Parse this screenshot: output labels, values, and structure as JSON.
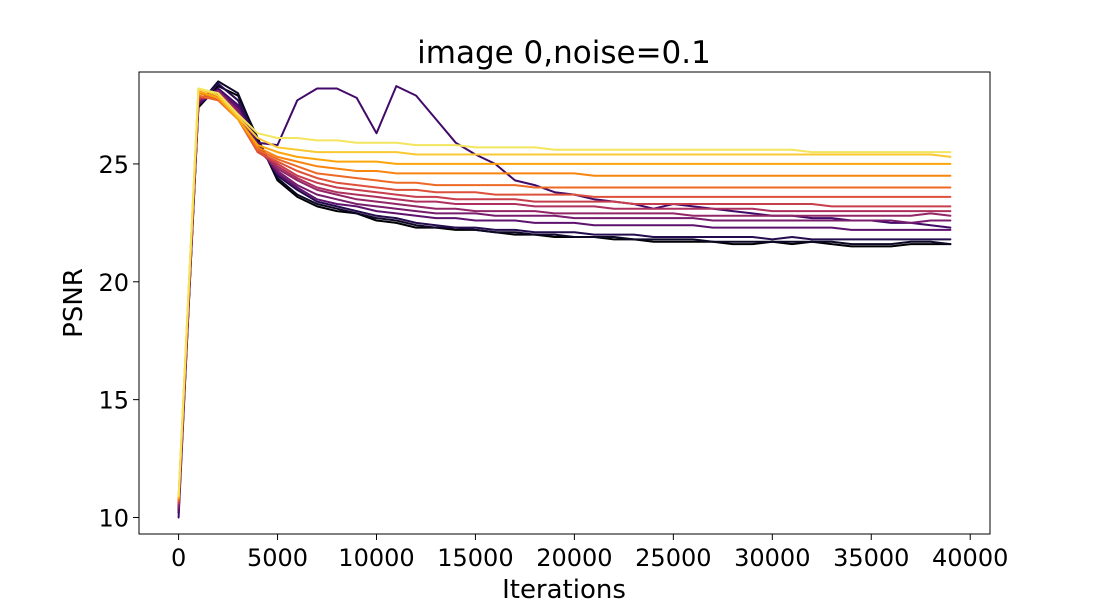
{
  "chart_data": {
    "type": "line",
    "title": "image 0,noise=0.1",
    "xlabel": "Iterations",
    "ylabel": "PSNR",
    "xlim": [
      -2000,
      41000
    ],
    "ylim": [
      9.3,
      28.9
    ],
    "xticks": [
      0,
      5000,
      10000,
      15000,
      20000,
      25000,
      30000,
      35000,
      40000
    ],
    "xtick_labels": [
      "0",
      "5000",
      "10000",
      "15000",
      "20000",
      "25000",
      "30000",
      "35000",
      "40000"
    ],
    "yticks": [
      10,
      15,
      20,
      25
    ],
    "ytick_labels": [
      "10",
      "15",
      "20",
      "25"
    ],
    "grid": false,
    "legend": "none",
    "x": [
      0,
      1000,
      2000,
      3000,
      4000,
      5000,
      6000,
      7000,
      8000,
      9000,
      10000,
      11000,
      12000,
      13000,
      14000,
      15000,
      16000,
      17000,
      18000,
      19000,
      20000,
      21000,
      22000,
      23000,
      24000,
      25000,
      26000,
      27000,
      28000,
      29000,
      30000,
      31000,
      32000,
      33000,
      34000,
      35000,
      36000,
      37000,
      38000,
      39000
    ],
    "series": [
      {
        "color": "#000004",
        "values": [
          10.2,
          27.4,
          28.3,
          27.9,
          26.1,
          24.3,
          23.6,
          23.2,
          23.0,
          22.9,
          22.6,
          22.5,
          22.3,
          22.3,
          22.2,
          22.2,
          22.1,
          22.0,
          22.0,
          21.9,
          21.9,
          21.9,
          21.8,
          21.8,
          21.7,
          21.7,
          21.7,
          21.7,
          21.6,
          21.6,
          21.7,
          21.6,
          21.7,
          21.6,
          21.5,
          21.5,
          21.5,
          21.6,
          21.6,
          21.6
        ]
      },
      {
        "color": "#0c0826",
        "values": [
          10.3,
          27.5,
          28.5,
          28.0,
          26.0,
          24.4,
          23.7,
          23.3,
          23.1,
          22.9,
          22.7,
          22.6,
          22.4,
          22.3,
          22.3,
          22.2,
          22.1,
          22.1,
          22.0,
          22.0,
          21.9,
          21.9,
          21.9,
          21.8,
          21.8,
          21.8,
          21.8,
          21.7,
          21.7,
          21.7,
          21.7,
          21.7,
          21.7,
          21.7,
          21.6,
          21.6,
          21.6,
          21.7,
          21.7,
          21.6
        ]
      },
      {
        "color": "#240c4f",
        "values": [
          10.4,
          27.6,
          28.4,
          27.7,
          25.9,
          24.5,
          23.9,
          23.4,
          23.2,
          23.0,
          22.8,
          22.7,
          22.5,
          22.4,
          22.3,
          22.3,
          22.2,
          22.2,
          22.1,
          22.1,
          22.1,
          22.0,
          22.0,
          22.0,
          21.9,
          21.9,
          21.9,
          21.9,
          21.9,
          21.9,
          21.8,
          21.9,
          21.8,
          21.8,
          21.8,
          21.8,
          21.8,
          21.8,
          21.8,
          21.8
        ]
      },
      {
        "color": "#420a68",
        "values": [
          10.0,
          27.5,
          28.2,
          27.5,
          25.9,
          25.8,
          27.7,
          28.2,
          28.2,
          27.8,
          26.3,
          28.3,
          27.9,
          26.9,
          25.9,
          25.4,
          25.0,
          24.3,
          24.1,
          23.8,
          23.7,
          23.5,
          23.4,
          23.3,
          23.1,
          23.3,
          23.2,
          23.1,
          23.0,
          22.9,
          22.8,
          22.8,
          22.7,
          22.7,
          22.6,
          22.6,
          22.5,
          22.5,
          22.4,
          22.3
        ]
      },
      {
        "color": "#5d126e",
        "values": [
          10.3,
          27.6,
          28.1,
          27.4,
          25.8,
          24.6,
          24.0,
          23.5,
          23.3,
          23.2,
          23.0,
          22.9,
          22.8,
          22.7,
          22.7,
          22.6,
          22.6,
          22.6,
          22.5,
          22.5,
          22.5,
          22.4,
          22.4,
          22.4,
          22.4,
          22.4,
          22.4,
          22.3,
          22.3,
          22.3,
          22.3,
          22.3,
          22.3,
          22.3,
          22.2,
          22.2,
          22.2,
          22.2,
          22.2,
          22.2
        ]
      },
      {
        "color": "#781c6d",
        "values": [
          10.4,
          27.7,
          28.0,
          27.3,
          25.7,
          24.7,
          24.1,
          23.7,
          23.5,
          23.3,
          23.2,
          23.1,
          23.0,
          22.9,
          22.9,
          22.9,
          22.8,
          22.8,
          22.8,
          22.8,
          22.7,
          22.7,
          22.7,
          22.7,
          22.7,
          22.7,
          22.7,
          22.6,
          22.6,
          22.6,
          22.6,
          22.6,
          22.6,
          22.6,
          22.6,
          22.6,
          22.6,
          22.5,
          22.6,
          22.6
        ]
      },
      {
        "color": "#932667",
        "values": [
          10.5,
          27.7,
          28.1,
          27.2,
          25.6,
          24.8,
          24.3,
          23.9,
          23.7,
          23.5,
          23.4,
          23.3,
          23.2,
          23.1,
          23.1,
          23.0,
          23.0,
          23.0,
          23.0,
          22.9,
          22.9,
          22.9,
          22.9,
          22.9,
          22.9,
          22.9,
          22.8,
          22.8,
          22.8,
          22.8,
          22.8,
          22.8,
          22.8,
          22.8,
          22.8,
          22.8,
          22.8,
          22.8,
          22.9,
          22.8
        ]
      },
      {
        "color": "#ad305f",
        "values": [
          10.6,
          27.8,
          27.9,
          27.1,
          25.6,
          24.9,
          24.4,
          24.0,
          23.8,
          23.7,
          23.6,
          23.5,
          23.4,
          23.4,
          23.3,
          23.3,
          23.3,
          23.3,
          23.2,
          23.2,
          23.2,
          23.2,
          23.1,
          23.1,
          23.1,
          23.1,
          23.1,
          23.1,
          23.1,
          23.1,
          23.0,
          23.0,
          23.0,
          23.0,
          23.0,
          23.0,
          23.0,
          23.0,
          23.0,
          23.0
        ]
      },
      {
        "color": "#c73e4c",
        "values": [
          10.6,
          27.8,
          27.8,
          27.0,
          25.5,
          25.0,
          24.5,
          24.2,
          24.0,
          23.9,
          23.8,
          23.7,
          23.6,
          23.6,
          23.5,
          23.5,
          23.5,
          23.5,
          23.4,
          23.4,
          23.4,
          23.4,
          23.4,
          23.3,
          23.3,
          23.3,
          23.3,
          23.3,
          23.3,
          23.3,
          23.3,
          23.3,
          23.3,
          23.2,
          23.2,
          23.2,
          23.2,
          23.2,
          23.2,
          23.2
        ]
      },
      {
        "color": "#dd513a",
        "values": [
          10.7,
          27.9,
          27.7,
          26.9,
          25.5,
          25.1,
          24.7,
          24.4,
          24.2,
          24.1,
          24.0,
          23.9,
          23.9,
          23.8,
          23.8,
          23.8,
          23.7,
          23.7,
          23.7,
          23.7,
          23.7,
          23.6,
          23.6,
          23.6,
          23.6,
          23.6,
          23.6,
          23.6,
          23.6,
          23.6,
          23.6,
          23.6,
          23.6,
          23.6,
          23.6,
          23.6,
          23.6,
          23.6,
          23.6,
          23.6
        ]
      },
      {
        "color": "#ed6925",
        "values": [
          10.7,
          27.9,
          27.7,
          26.9,
          25.6,
          25.2,
          24.9,
          24.6,
          24.5,
          24.4,
          24.3,
          24.2,
          24.2,
          24.1,
          24.1,
          24.1,
          24.1,
          24.1,
          24.0,
          24.0,
          24.0,
          24.0,
          24.0,
          24.0,
          24.0,
          24.0,
          24.0,
          24.0,
          24.0,
          24.0,
          24.0,
          24.0,
          24.0,
          24.0,
          24.0,
          24.0,
          24.0,
          24.0,
          24.0,
          24.0
        ]
      },
      {
        "color": "#f8850f",
        "values": [
          10.8,
          28.0,
          27.8,
          26.9,
          25.7,
          25.3,
          25.1,
          24.9,
          24.8,
          24.7,
          24.7,
          24.6,
          24.6,
          24.6,
          24.6,
          24.6,
          24.6,
          24.6,
          24.6,
          24.6,
          24.6,
          24.5,
          24.5,
          24.5,
          24.5,
          24.5,
          24.5,
          24.5,
          24.5,
          24.5,
          24.5,
          24.5,
          24.5,
          24.5,
          24.5,
          24.5,
          24.5,
          24.5,
          24.5,
          24.5
        ]
      },
      {
        "color": "#fca50a",
        "values": [
          10.8,
          28.1,
          27.8,
          26.9,
          25.8,
          25.5,
          25.3,
          25.2,
          25.1,
          25.1,
          25.1,
          25.0,
          25.0,
          25.0,
          25.0,
          25.0,
          25.0,
          25.0,
          25.0,
          25.0,
          25.0,
          25.0,
          25.0,
          25.0,
          25.0,
          25.0,
          25.0,
          25.0,
          25.0,
          25.0,
          25.0,
          25.0,
          25.0,
          25.0,
          25.0,
          25.0,
          25.0,
          25.0,
          25.0,
          25.0
        ]
      },
      {
        "color": "#f8c932",
        "values": [
          10.9,
          28.2,
          27.9,
          27.0,
          26.1,
          25.7,
          25.6,
          25.5,
          25.5,
          25.5,
          25.5,
          25.5,
          25.4,
          25.4,
          25.4,
          25.4,
          25.4,
          25.4,
          25.4,
          25.4,
          25.4,
          25.4,
          25.4,
          25.4,
          25.4,
          25.4,
          25.4,
          25.4,
          25.4,
          25.4,
          25.4,
          25.4,
          25.4,
          25.4,
          25.4,
          25.4,
          25.4,
          25.4,
          25.4,
          25.3
        ]
      },
      {
        "color": "#f3e55d",
        "values": [
          10.9,
          28.2,
          28.0,
          27.1,
          26.3,
          26.1,
          26.1,
          26.0,
          26.0,
          25.9,
          25.9,
          25.9,
          25.8,
          25.8,
          25.8,
          25.7,
          25.7,
          25.7,
          25.7,
          25.6,
          25.6,
          25.6,
          25.6,
          25.6,
          25.6,
          25.6,
          25.6,
          25.6,
          25.6,
          25.6,
          25.6,
          25.6,
          25.5,
          25.5,
          25.5,
          25.5,
          25.5,
          25.5,
          25.5,
          25.5
        ]
      }
    ]
  }
}
